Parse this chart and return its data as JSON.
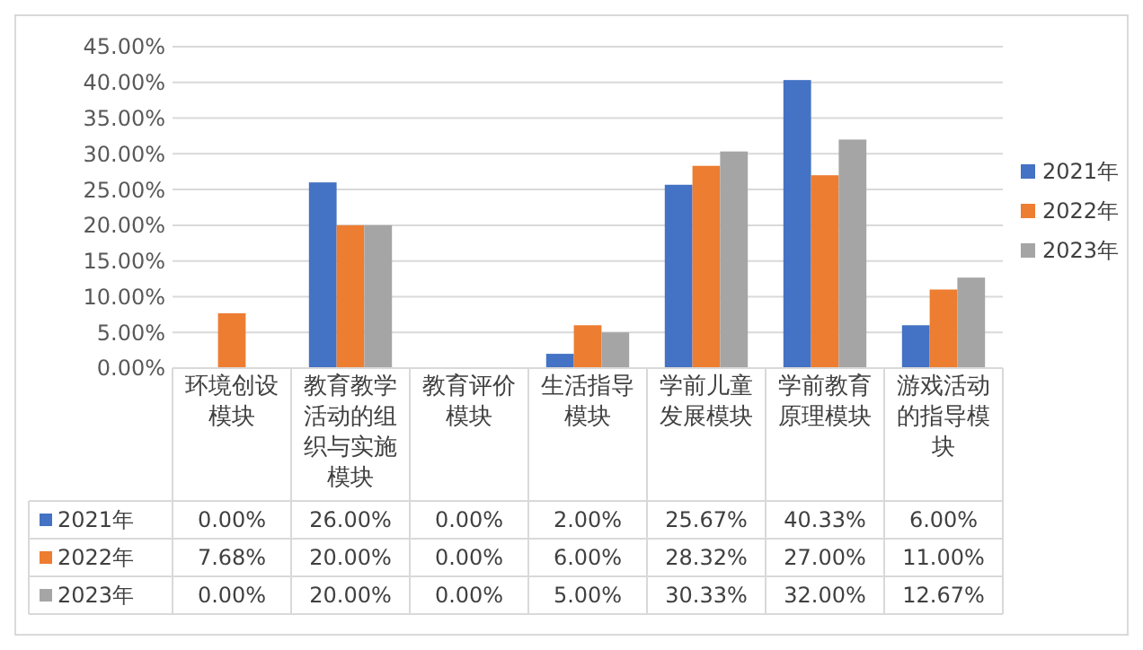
{
  "chart_data": {
    "type": "bar",
    "categories": [
      "环境创设模块",
      "教育教学活动的组织与实施模块",
      "教育评价模块",
      "生活指导模块",
      "学前儿童发展模块",
      "学前教育原理模块",
      "游戏活动的指导模块"
    ],
    "series": [
      {
        "name": "2021年",
        "color": "#4472c4",
        "values": [
          0,
          26,
          0,
          2,
          25.67,
          40.33,
          6
        ],
        "value_labels": [
          "0.00%",
          "26.00%",
          "0.00%",
          "2.00%",
          "25.67%",
          "40.33%",
          "6.00%"
        ]
      },
      {
        "name": "2022年",
        "color": "#ed7d31",
        "values": [
          7.68,
          20,
          0,
          6,
          28.32,
          27,
          11
        ],
        "value_labels": [
          "7.68%",
          "20.00%",
          "0.00%",
          "6.00%",
          "28.32%",
          "27.00%",
          "11.00%"
        ]
      },
      {
        "name": "2023年",
        "color": "#a5a5a5",
        "values": [
          0,
          20,
          0,
          5,
          30.33,
          32,
          12.67
        ],
        "value_labels": [
          "0.00%",
          "20.00%",
          "0.00%",
          "5.00%",
          "30.33%",
          "32.00%",
          "12.67%"
        ]
      }
    ],
    "ylim": [
      0,
      45
    ],
    "yticks": [
      {
        "value": 0,
        "label": "0.00%"
      },
      {
        "value": 5,
        "label": "5.00%"
      },
      {
        "value": 10,
        "label": "10.00%"
      },
      {
        "value": 15,
        "label": "15.00%"
      },
      {
        "value": 20,
        "label": "20.00%"
      },
      {
        "value": 25,
        "label": "25.00%"
      },
      {
        "value": 30,
        "label": "30.00%"
      },
      {
        "value": 35,
        "label": "35.00%"
      },
      {
        "value": 40,
        "label": "40.00%"
      },
      {
        "value": 45,
        "label": "45.00%"
      }
    ],
    "grid": "y",
    "legend": "right"
  }
}
